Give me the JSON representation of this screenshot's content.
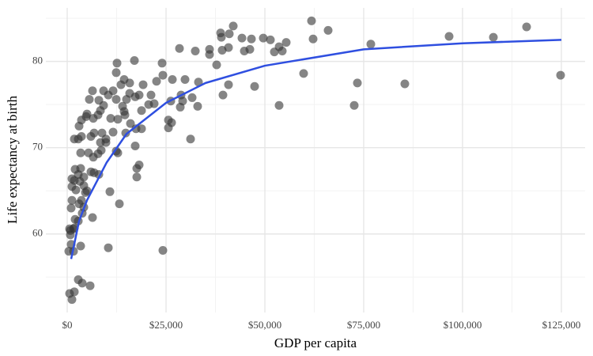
{
  "chart_data": {
    "type": "scatter",
    "x_label": "GDP per capita",
    "y_label": "Life expectancy at birth",
    "xlim": [
      -5400,
      131000
    ],
    "ylim": [
      50.9,
      86.2
    ],
    "xticks": [
      {
        "value": 0,
        "label": "$0"
      },
      {
        "value": 25000,
        "label": "$25,000"
      },
      {
        "value": 50000,
        "label": "$50,000"
      },
      {
        "value": 75000,
        "label": "$75,000"
      },
      {
        "value": 100000,
        "label": "$100,000"
      },
      {
        "value": 125000,
        "label": "$125,000"
      }
    ],
    "yticks": [
      60,
      70,
      80
    ],
    "grid": true,
    "minor_grid": true,
    "points": {
      "color": "#333333",
      "x": [
        61800,
        42000,
        116200,
        66000,
        96600,
        107800,
        38800,
        39000,
        41000,
        44200,
        46600,
        49600,
        51400,
        62200,
        76800,
        55400,
        53600,
        54400,
        52400,
        46200,
        44800,
        40800,
        39200,
        36000,
        36000,
        28400,
        32400,
        24000,
        17000,
        12600,
        37800,
        59800,
        124800,
        40800,
        47400,
        73400,
        85400,
        72600,
        53600,
        39400,
        31200,
        24200,
        19200,
        22600,
        26600,
        29800,
        33200,
        24200,
        12400,
        14400,
        15800,
        13600,
        6400,
        9200,
        11600,
        15800,
        18200,
        21200,
        17200,
        15000,
        12400,
        5600,
        8000,
        10400,
        28800,
        31600,
        29200,
        26200,
        22000,
        20600,
        28600,
        33000,
        14000,
        14400,
        18800,
        9200,
        8400,
        5000,
        7800,
        6600,
        3600,
        4800,
        11000,
        12800,
        14600,
        16000,
        25600,
        26400,
        25600,
        3000,
        17400,
        18800,
        6800,
        8800,
        6000,
        11600,
        14800,
        2800,
        1800,
        3600,
        9800,
        8400,
        9800,
        17200,
        8600,
        7800,
        12400,
        12800,
        3400,
        5400,
        6600,
        18200,
        17600,
        2000,
        3400,
        6000,
        6800,
        4200,
        2800,
        8000,
        17600,
        1200,
        1800,
        3200,
        1200,
        4200,
        2200,
        5000,
        4600,
        10800,
        3600,
        1200,
        3000,
        13200,
        4200,
        1000,
        3800,
        6400,
        2000,
        2800,
        600,
        800,
        1600,
        800,
        1800,
        1000,
        3400,
        400,
        1600,
        10400,
        2800,
        3800,
        5800,
        600,
        1800,
        1200
      ],
      "y": [
        84.7,
        84.1,
        84.0,
        83.6,
        82.9,
        82.8,
        83.3,
        82.8,
        83.2,
        82.7,
        82.6,
        82.7,
        82.5,
        82.6,
        82.0,
        82.2,
        81.7,
        81.2,
        81.1,
        81.4,
        81.2,
        81.6,
        81.3,
        81.4,
        80.8,
        81.5,
        81.2,
        79.8,
        80.1,
        79.8,
        79.6,
        78.6,
        78.4,
        77.3,
        77.1,
        77.5,
        77.4,
        74.9,
        74.9,
        76.1,
        71.0,
        58.1,
        77.3,
        77.7,
        77.9,
        77.9,
        77.6,
        78.4,
        78.7,
        77.9,
        77.5,
        77.3,
        76.6,
        76.6,
        76.6,
        76.3,
        76.1,
        76.1,
        75.9,
        75.6,
        75.6,
        75.6,
        75.5,
        76.1,
        76.1,
        75.8,
        75.4,
        75.4,
        75.1,
        75.0,
        74.7,
        74.8,
        74.8,
        74.2,
        74.3,
        74.9,
        74.3,
        73.9,
        73.8,
        73.4,
        73.2,
        73.6,
        73.4,
        73.3,
        73.8,
        72.8,
        73.2,
        72.9,
        72.3,
        72.5,
        72.2,
        72.2,
        71.7,
        71.7,
        71.3,
        71.8,
        71.7,
        71.0,
        71.0,
        71.3,
        71.0,
        70.6,
        70.6,
        70.2,
        69.7,
        69.3,
        69.6,
        69.4,
        69.4,
        69.4,
        68.9,
        68.0,
        67.6,
        67.5,
        67.6,
        67.2,
        67.1,
        66.6,
        66.9,
        66.9,
        66.6,
        66.4,
        66.2,
        66.1,
        65.5,
        65.6,
        65.1,
        65.0,
        64.8,
        64.9,
        63.9,
        63.9,
        63.5,
        63.5,
        63.1,
        63.0,
        62.4,
        61.9,
        61.7,
        61.5,
        60.6,
        60.4,
        60.6,
        59.9,
        60.7,
        58.8,
        58.6,
        58.0,
        58.0,
        58.4,
        54.7,
        54.3,
        54.0,
        53.1,
        53.3,
        52.4
      ]
    },
    "trend": {
      "color": "#2f4fe0",
      "x": [
        1000,
        3000,
        5000,
        10000,
        15000,
        25000,
        35000,
        50000,
        75000,
        100000,
        125000
      ],
      "y": [
        57.1,
        61.5,
        63.9,
        68.3,
        71.6,
        75.2,
        77.5,
        79.5,
        81.4,
        82.1,
        82.5
      ]
    }
  }
}
